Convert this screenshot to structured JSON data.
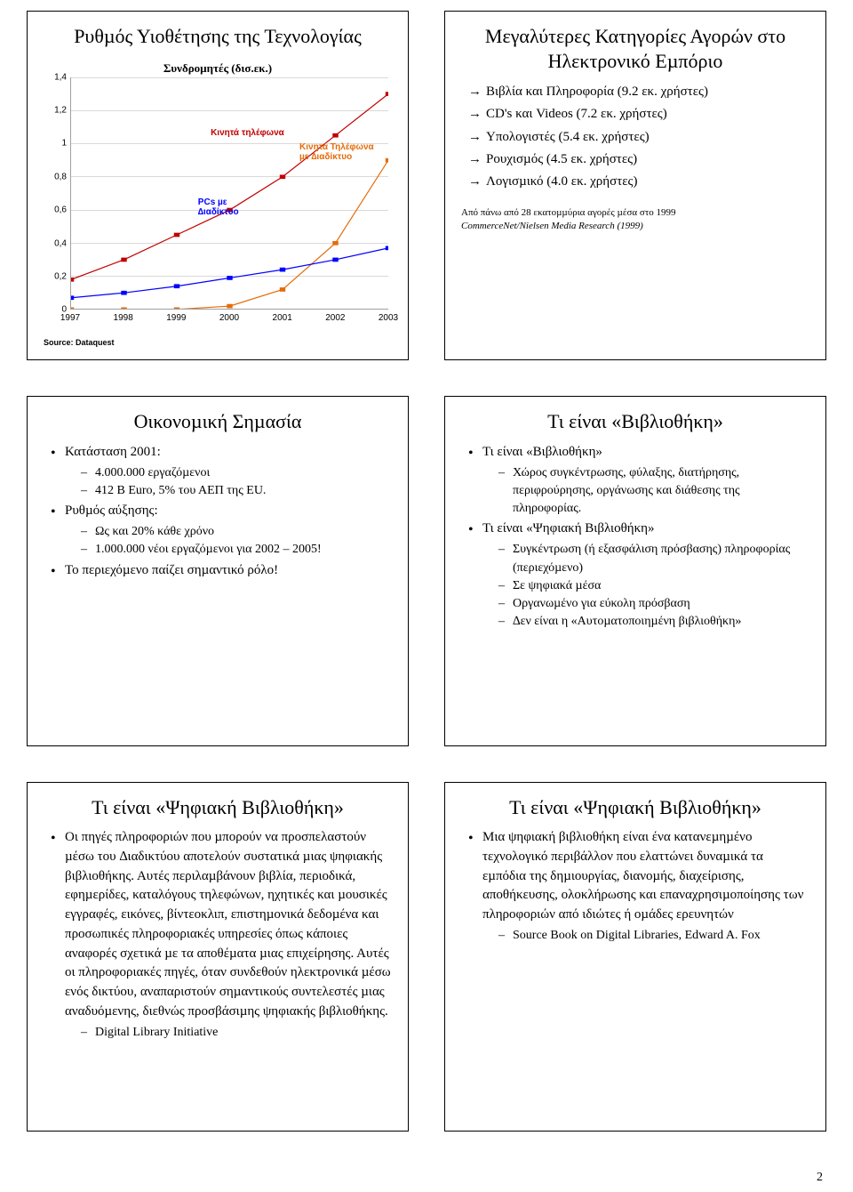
{
  "page_number": "2",
  "slides": {
    "s1": {
      "title": "Ρυθµός Υιοθέτησης της Τεχνολογίας",
      "chart": {
        "type": "line",
        "title": "Συνδροµητές (δισ.εκ.)",
        "x_labels": [
          "1997",
          "1998",
          "1999",
          "2000",
          "2001",
          "2002",
          "2003"
        ],
        "y_ticks": [
          "0",
          "0,2",
          "0,4",
          "0,6",
          "0,8",
          "1",
          "1,2",
          "1,4"
        ],
        "ylim": [
          0,
          1.4
        ],
        "series": [
          {
            "name": "Κινητά τηλέφωνα",
            "color": "#c00000",
            "label_pos": {
              "left": "44%",
              "top": "22%"
            },
            "values": [
              0.18,
              0.3,
              0.45,
              0.6,
              0.8,
              1.05,
              1.3
            ]
          },
          {
            "name": "Κινητά Τηλέφωνα\nµε ∆ιαδίκτυο",
            "color": "#e46c0a",
            "label_pos": {
              "left": "72%",
              "top": "28%"
            },
            "values": [
              0.0,
              0.0,
              0.0,
              0.02,
              0.12,
              0.4,
              0.9
            ]
          },
          {
            "name": "PCs µε\n∆ιαδίκτυο",
            "color": "#0000ff",
            "label_pos": {
              "left": "40%",
              "top": "52%"
            },
            "values": [
              0.07,
              0.1,
              0.14,
              0.19,
              0.24,
              0.3,
              0.37
            ]
          }
        ],
        "grid_color": "#d9d9d9",
        "axis_color": "#a0a0a0",
        "tick_fontsize": 10,
        "label_fontsize": 10,
        "title_fontsize": 13
      },
      "source": "Source: Dataquest"
    },
    "s2": {
      "title": "Μεγαλύτερες Κατηγορίες Αγορών στο Ηλεκτρονικό Εµπόριο",
      "arrow_items": [
        "Βιβλία και Πληροφορία (9.2 εκ. χρήστες)",
        "CD's και Videos (7.2 εκ. χρήστες)",
        "Υπολογιστές (5.4 εκ. χρήστες)",
        "Ρουχισµός (4.5 εκ. χρήστες)",
        "Λογισµικό (4.0 εκ. χρήστες)"
      ],
      "footnote_line": "Από πάνω από 28 εκατοµµύρια αγορές µέσα στο 1999",
      "footnote_src": "CommerceNet/Nielsen Media Research (1999)"
    },
    "s3": {
      "title": "Οικονοµική Σηµασία",
      "bullets": [
        {
          "text": "Κατάσταση 2001:",
          "subs": [
            "4.000.000 εργαζόµενοι",
            "412 B Euro, 5% του ΑΕΠ της EU."
          ]
        },
        {
          "text": "Ρυθµός αύξησης:",
          "subs": [
            "Ως και 20% κάθε χρόνο",
            "1.000.000 νέοι εργαζόµενοι για 2002 – 2005!"
          ]
        },
        {
          "text": "Το περιεχόµενο παίζει σηµαντικό ρόλο!",
          "subs": []
        }
      ]
    },
    "s4": {
      "title": "Τι είναι «Βιβλιοθήκη»",
      "bullets": [
        {
          "text": "Τι είναι «Βιβλιοθήκη»",
          "subs": [
            "Χώρος συγκέντρωσης, φύλαξης, διατήρησης, περιφρούρησης, οργάνωσης και διάθεσης της πληροφορίας."
          ]
        },
        {
          "text": "Τι είναι «Ψηφιακή Βιβλιοθήκη»",
          "subs": [
            "Συγκέντρωση (ή εξασφάλιση πρόσβασης) πληροφορίας (περιεχόµενο)",
            "Σε ψηφιακά µέσα",
            "Οργανωµένο για εύκολη πρόσβαση",
            "∆εν είναι η «Αυτοµατοποιηµένη βιβλιοθήκη»"
          ]
        }
      ]
    },
    "s5": {
      "title": "Τι είναι «Ψηφιακή Βιβλιοθήκη»",
      "bullets": [
        {
          "text": "Οι πηγές πληροφοριών που µπορούν να προσπελαστούν µέσω του ∆ιαδικτύου αποτελούν συστατικά µιας ψηφιακής βιβλιοθήκης. Αυτές περιλαµβάνουν βιβλία, περιοδικά, εφηµερίδες, καταλόγους τηλεφώνων, ηχητικές και µουσικές εγγραφές, εικόνες, βίντεοκλιπ, επιστηµονικά δεδοµένα και προσωπικές πληροφοριακές υπηρεσίες όπως κάποιες αναφορές σχετικά µε τα αποθέµατα µιας επιχείρησης. Αυτές οι πληροφοριακές πηγές, όταν συνδεθούν ηλεκτρονικά µέσω ενός δικτύου, αναπαριστούν σηµαντικούς συντελεστές µιας αναδυόµενης, διεθνώς προσβάσιµης ψηφιακής βιβλιοθήκης.",
          "subs": [
            "Digital Library Initiative"
          ]
        }
      ]
    },
    "s6": {
      "title": "Τι είναι «Ψηφιακή Βιβλιοθήκη»",
      "bullets": [
        {
          "text": "Μια ψηφιακή βιβλιοθήκη είναι ένα κατανεµηµένο τεχνολογικό περιβάλλον που ελαττώνει δυναµικά τα εµπόδια της δηµιουργίας, διανοµής, διαχείρισης, αποθήκευσης, ολοκλήρωσης και επαναχρησιµοποίησης των πληροφοριών από ιδιώτες ή οµάδες ερευνητών",
          "subs": [
            "Source Book on Digital Libraries, Edward A. Fox"
          ]
        }
      ]
    }
  }
}
